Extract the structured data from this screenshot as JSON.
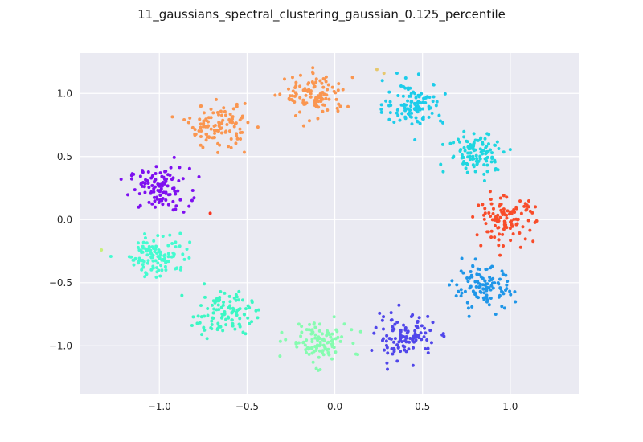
{
  "chart_data": {
    "type": "scatter",
    "title": "11_gaussians_spectral_clustering_gaussian_0.125_percentile",
    "xlabel": "",
    "ylabel": "",
    "xlim": [
      -1.45,
      1.39
    ],
    "ylim": [
      -1.38,
      1.32
    ],
    "grid": true,
    "background": "#eaeaf2",
    "grid_color": "#ffffff",
    "x_ticks": [
      -1.0,
      -0.5,
      0.0,
      0.5,
      1.0
    ],
    "x_tick_labels": [
      "−1.0",
      "−0.5",
      "0.0",
      "0.5",
      "1.0"
    ],
    "y_ticks": [
      -1.0,
      -0.5,
      0.0,
      0.5,
      1.0
    ],
    "y_tick_labels": [
      "−1.0",
      "−0.5",
      "0.0",
      "0.5",
      "1.0"
    ],
    "clusters": [
      {
        "color": "#7e0ff0",
        "center": [
          -1.0,
          0.24
        ],
        "n": 110,
        "spread": 0.085
      },
      {
        "color": "#44fbd0",
        "center": [
          -1.0,
          -0.28
        ],
        "n": 110,
        "spread": 0.085
      },
      {
        "color": "#3cf7c4",
        "center": [
          -0.64,
          -0.74
        ],
        "n": 110,
        "spread": 0.085
      },
      {
        "color": "#86fcb0",
        "center": [
          -0.1,
          -0.97
        ],
        "n": 110,
        "spread": 0.085
      },
      {
        "color": "#5046ea",
        "center": [
          0.4,
          -0.93
        ],
        "n": 110,
        "spread": 0.085
      },
      {
        "color": "#1f96e8",
        "center": [
          0.85,
          -0.55
        ],
        "n": 110,
        "spread": 0.085
      },
      {
        "color": "#f84c2a",
        "center": [
          0.97,
          0.0
        ],
        "n": 110,
        "spread": 0.085
      },
      {
        "color": "#1fd6e0",
        "center": [
          0.82,
          0.53
        ],
        "n": 110,
        "spread": 0.085
      },
      {
        "color": "#1cccea",
        "center": [
          0.45,
          0.92
        ],
        "n": 110,
        "spread": 0.085
      },
      {
        "color": "#fa9650",
        "center": [
          -0.11,
          0.98
        ],
        "n": 110,
        "spread": 0.085
      },
      {
        "color": "#fa9650",
        "center": [
          -0.67,
          0.74
        ],
        "n": 110,
        "spread": 0.085
      }
    ],
    "outliers": [
      {
        "x": -1.33,
        "y": -0.24,
        "color": "#c8f07a"
      },
      {
        "x": 0.24,
        "y": 1.19,
        "color": "#e6c86e"
      },
      {
        "x": 0.28,
        "y": 1.16,
        "color": "#e6c86e"
      },
      {
        "x": -0.71,
        "y": 0.05,
        "color": "#f8341e"
      }
    ]
  }
}
